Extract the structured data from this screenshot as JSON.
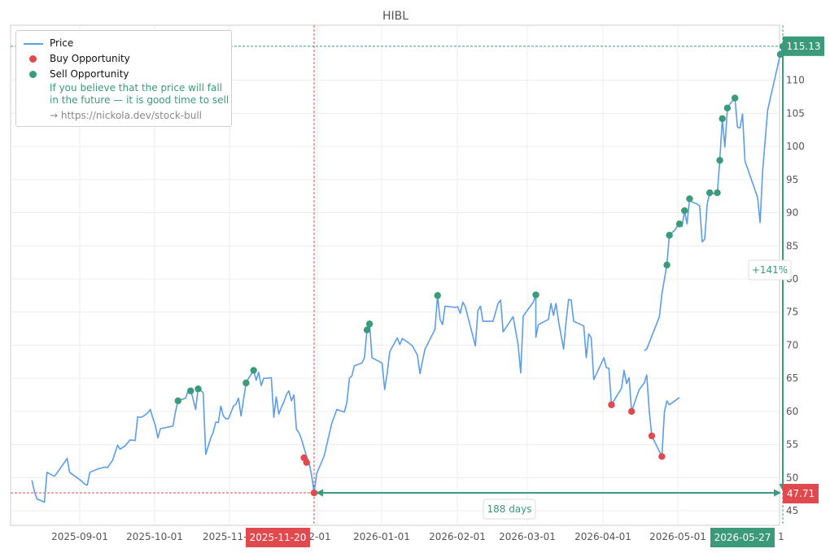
{
  "chart_data": {
    "type": "line",
    "title": "HIBL",
    "xlabel": "",
    "ylabel": "",
    "x_ticks": [
      "2025-09-01",
      "2025-10-01",
      "2025-11-",
      "2025-11-20",
      "2-01",
      "2026-01-01",
      "2026-02-01",
      "2026-03-01",
      "2026-04-01",
      "2026-05-01",
      "2026-05-27",
      "1"
    ],
    "y_ticks": [
      45,
      50,
      55,
      60,
      65,
      70,
      75,
      80,
      85,
      90,
      95,
      100,
      105,
      110
    ],
    "ylim": [
      42.8,
      118.3
    ],
    "grid": true,
    "legend_position": "top-left",
    "series": [
      {
        "name": "Price",
        "color": "#5c9de8",
        "segments": [
          [
            [
              "2025-08-13",
              49.6
            ],
            [
              "2025-08-14",
              47.9
            ],
            [
              "2025-08-15",
              46.8
            ],
            [
              "2025-08-18",
              46.3
            ],
            [
              "2025-08-19",
              50.8
            ],
            [
              "2025-08-21",
              50.4
            ],
            [
              "2025-08-22",
              50.2
            ],
            [
              "2025-08-25",
              51.8
            ],
            [
              "2025-08-27",
              52.9
            ],
            [
              "2025-08-28",
              50.8
            ],
            [
              "2025-09-02",
              49.4
            ],
            [
              "2025-09-03",
              49.0
            ],
            [
              "2025-09-04",
              48.9
            ],
            [
              "2025-09-05",
              50.8
            ],
            [
              "2025-09-08",
              51.3
            ],
            [
              "2025-09-11",
              51.6
            ],
            [
              "2025-09-12",
              51.5
            ],
            [
              "2025-09-14",
              52.6
            ],
            [
              "2025-09-16",
              54.9
            ],
            [
              "2025-09-17",
              54.3
            ],
            [
              "2025-09-19",
              54.8
            ],
            [
              "2025-09-21",
              55.7
            ],
            [
              "2025-09-23",
              55.6
            ],
            [
              "2025-09-24",
              59.2
            ],
            [
              "2025-09-25",
              59.1
            ],
            [
              "2025-09-26",
              59.2
            ],
            [
              "2025-09-28",
              59.8
            ],
            [
              "2025-09-29",
              60.3
            ],
            [
              "2025-09-30",
              59.0
            ],
            [
              "2025-10-01",
              57.9
            ],
            [
              "2025-10-02",
              56.0
            ],
            [
              "2025-10-03",
              57.4
            ],
            [
              "2025-10-08",
              57.8
            ],
            [
              "2025-10-09",
              60.0
            ],
            [
              "2025-10-10",
              61.6
            ],
            [
              "2025-10-13",
              62.0
            ],
            [
              "2025-10-14",
              63.1
            ],
            [
              "2025-10-15",
              63.2
            ],
            [
              "2025-10-16",
              61.8
            ],
            [
              "2025-10-17",
              60.3
            ],
            [
              "2025-10-18",
              63.6
            ],
            [
              "2025-10-20",
              62.8
            ],
            [
              "2025-10-21",
              53.5
            ],
            [
              "2025-10-23",
              56.0
            ],
            [
              "2025-10-24",
              56.9
            ],
            [
              "2025-10-25",
              58.4
            ],
            [
              "2025-10-26",
              58.3
            ],
            [
              "2025-10-27",
              60.8
            ],
            [
              "2025-10-28",
              59.3
            ],
            [
              "2025-10-29",
              58.9
            ],
            [
              "2025-10-30",
              58.9
            ],
            [
              "2025-11-01",
              60.8
            ],
            [
              "2025-11-02",
              61.1
            ],
            [
              "2025-11-03",
              62.0
            ],
            [
              "2025-11-04",
              59.3
            ],
            [
              "2025-11-06",
              64.3
            ],
            [
              "2025-11-07",
              65.0
            ],
            [
              "2025-11-09",
              66.2
            ],
            [
              "2025-11-10",
              64.7
            ],
            [
              "2025-11-11",
              65.9
            ],
            [
              "2025-11-12",
              63.9
            ],
            [
              "2025-11-13",
              65.0
            ],
            [
              "2025-11-14",
              65.0
            ],
            [
              "2025-11-16",
              65.1
            ],
            [
              "2025-11-17",
              59.1
            ],
            [
              "2025-11-18",
              62.2
            ],
            [
              "2025-11-19",
              59.6
            ],
            [
              "2025-11-20",
              60.6
            ],
            [
              "2025-11-21",
              61.4
            ],
            [
              "2025-11-22",
              62.5
            ],
            [
              "2025-11-23",
              63.1
            ],
            [
              "2025-11-24",
              61.6
            ],
            [
              "2025-11-25",
              62.5
            ],
            [
              "2025-11-26",
              57.3
            ],
            [
              "2025-11-27",
              56.8
            ],
            [
              "2025-11-28",
              55.8
            ],
            [
              "2025-11-30",
              53.2
            ],
            [
              "2025-12-01",
              52.3
            ],
            [
              "2025-12-02",
              50.4
            ],
            [
              "2025-12-03",
              47.7
            ],
            [
              "2025-12-04",
              50.6
            ],
            [
              "2025-12-07",
              53.3
            ],
            [
              "2025-12-10",
              58.2
            ],
            [
              "2025-12-12",
              60.3
            ],
            [
              "2025-12-15",
              59.9
            ],
            [
              "2025-12-16",
              61.4
            ],
            [
              "2025-12-17",
              65.0
            ],
            [
              "2025-12-18",
              65.4
            ],
            [
              "2025-12-19",
              66.9
            ],
            [
              "2025-12-22",
              67.3
            ],
            [
              "2025-12-23",
              68.1
            ],
            [
              "2025-12-24",
              72.3
            ],
            [
              "2025-12-25",
              73.3
            ],
            [
              "2025-12-26",
              68.1
            ],
            [
              "2025-12-30",
              67.3
            ],
            [
              "2025-12-31",
              63.3
            ],
            [
              "2026-01-01",
              65.7
            ],
            [
              "2026-01-02",
              69.0
            ],
            [
              "2026-01-05",
              71.1
            ],
            [
              "2026-01-06",
              70.1
            ],
            [
              "2026-01-07",
              71.0
            ],
            [
              "2026-01-09",
              70.5
            ],
            [
              "2026-01-11",
              69.9
            ],
            [
              "2026-01-12",
              69.2
            ],
            [
              "2026-01-13",
              68.5
            ],
            [
              "2026-01-14",
              65.7
            ],
            [
              "2026-01-15",
              67.6
            ],
            [
              "2026-01-16",
              69.4
            ],
            [
              "2026-01-20",
              72.4
            ],
            [
              "2026-01-21",
              77.5
            ],
            [
              "2026-01-22",
              73.9
            ],
            [
              "2026-01-23",
              73.1
            ],
            [
              "2026-01-24",
              75.9
            ],
            [
              "2026-01-28",
              75.7
            ],
            [
              "2026-01-29",
              75.8
            ],
            [
              "2026-01-30",
              74.8
            ],
            [
              "2026-01-31",
              76.5
            ],
            [
              "2026-02-01",
              75.8
            ],
            [
              "2026-02-05",
              69.9
            ],
            [
              "2026-02-06",
              75.2
            ],
            [
              "2026-02-07",
              75.9
            ],
            [
              "2026-02-08",
              73.6
            ],
            [
              "2026-02-12",
              73.6
            ],
            [
              "2026-02-14",
              76.3
            ],
            [
              "2026-02-15",
              76.8
            ],
            [
              "2026-02-16",
              72.0
            ],
            [
              "2026-02-20",
              74.3
            ],
            [
              "2026-02-22",
              70.0
            ],
            [
              "2026-02-23",
              65.8
            ],
            [
              "2026-02-24",
              74.4
            ],
            [
              "2026-02-28",
              76.5
            ],
            [
              "2026-02-29",
              77.6
            ],
            [
              "2026-03-01",
              71.2
            ],
            [
              "2026-03-02",
              73.1
            ],
            [
              "2026-03-06",
              73.9
            ],
            [
              "2026-03-07",
              76.3
            ],
            [
              "2026-03-08",
              74.5
            ],
            [
              "2026-03-09",
              76.3
            ],
            [
              "2026-03-10",
              73.6
            ],
            [
              "2026-03-12",
              69.4
            ],
            [
              "2026-03-13",
              73.6
            ],
            [
              "2026-03-14",
              76.9
            ],
            [
              "2026-03-15",
              76.8
            ],
            [
              "2026-03-16",
              73.6
            ],
            [
              "2026-03-20",
              72.9
            ],
            [
              "2026-03-21",
              68.1
            ],
            [
              "2026-03-22",
              71.7
            ],
            [
              "2026-03-23",
              71.1
            ],
            [
              "2026-03-24",
              64.8
            ],
            [
              "2026-03-28",
              68.1
            ],
            [
              "2026-03-29",
              66.6
            ],
            [
              "2026-03-30",
              66.5
            ],
            [
              "2026-03-31",
              61.0
            ],
            [
              "2026-04-04",
              63.5
            ],
            [
              "2026-04-05",
              66.2
            ],
            [
              "2026-04-06",
              64.2
            ],
            [
              "2026-04-07",
              65.1
            ],
            [
              "2026-04-08",
              60.0
            ],
            [
              "2026-04-11",
              63.3
            ],
            [
              "2026-04-13",
              64.3
            ],
            [
              "2026-04-14",
              65.5
            ],
            [
              "2026-04-15",
              60.0
            ],
            [
              "2026-04-16",
              56.3
            ],
            [
              "2026-04-20",
              53.2
            ],
            [
              "2026-04-21",
              59.9
            ],
            [
              "2026-04-22",
              61.6
            ],
            [
              "2026-04-23",
              61.0
            ],
            [
              "2026-04-27",
              62.1
            ]
          ],
          [
            [
              "2026-04-13",
              69.2
            ],
            [
              "2026-04-14",
              69.4
            ],
            [
              "2026-04-19",
              74.3
            ],
            [
              "2026-04-20",
              77.7
            ],
            [
              "2026-04-22",
              82.1
            ],
            [
              "2026-04-23",
              86.6
            ],
            [
              "2026-04-25",
              87.3
            ],
            [
              "2026-04-27",
              88.4
            ],
            [
              "2026-04-28",
              87.9
            ],
            [
              "2026-04-29",
              90.2
            ],
            [
              "2026-04-30",
              88.3
            ],
            [
              "2026-05-01",
              92.0
            ],
            [
              "2026-05-02",
              91.6
            ],
            [
              "2026-05-04",
              91.3
            ],
            [
              "2026-05-05",
              91.0
            ],
            [
              "2026-05-06",
              85.6
            ],
            [
              "2026-05-07",
              86.0
            ],
            [
              "2026-05-08",
              91.3
            ],
            [
              "2026-05-09",
              93.0
            ],
            [
              "2026-05-12",
              92.8
            ],
            [
              "2026-05-13",
              98.0
            ],
            [
              "2026-05-14",
              104.2
            ],
            [
              "2026-05-15",
              99.9
            ],
            [
              "2026-05-16",
              105.7
            ],
            [
              "2026-05-17",
              106.4
            ],
            [
              "2026-05-19",
              107.3
            ],
            [
              "2026-05-20",
              102.9
            ],
            [
              "2026-05-21",
              102.8
            ],
            [
              "2026-05-22",
              104.9
            ],
            [
              "2026-05-23",
              97.8
            ],
            [
              "2026-05-28",
              92.3
            ],
            [
              "2026-05-29",
              88.5
            ],
            [
              "2026-05-30",
              96.3
            ],
            [
              "2026-06-01",
              105.5
            ],
            [
              "2026-06-06",
              113.9
            ],
            [
              "2026-06-07",
              115.1
            ]
          ]
        ]
      }
    ],
    "buy_points": [
      [
        "2025-11-29",
        53.0
      ],
      [
        "2025-11-30",
        52.3
      ],
      [
        "2025-12-03",
        47.7
      ],
      [
        "2026-03-31",
        61.0
      ],
      [
        "2026-04-08",
        60.0
      ],
      [
        "2026-04-16",
        56.3
      ],
      [
        "2026-04-20",
        53.2
      ]
    ],
    "sell_points": [
      [
        "2025-10-10",
        61.6
      ],
      [
        "2025-10-15",
        63.1
      ],
      [
        "2025-10-18",
        63.4
      ],
      [
        "2025-11-06",
        64.3
      ],
      [
        "2025-11-09",
        66.2
      ],
      [
        "2025-12-24",
        72.3
      ],
      [
        "2025-12-25",
        73.2
      ],
      [
        "2026-01-21",
        77.5
      ],
      [
        "2026-02-29",
        77.6
      ],
      [
        "2026-04-22",
        82.1
      ],
      [
        "2026-04-23",
        86.6
      ],
      [
        "2026-04-27",
        88.3
      ],
      [
        "2026-04-29",
        90.3
      ],
      [
        "2026-05-01",
        92.1
      ],
      [
        "2026-05-09",
        93.0
      ],
      [
        "2026-05-12",
        93.0
      ],
      [
        "2026-05-13",
        97.9
      ],
      [
        "2026-05-14",
        104.2
      ],
      [
        "2026-05-16",
        105.8
      ],
      [
        "2026-05-19",
        107.3
      ],
      [
        "2026-06-06",
        113.9
      ],
      [
        "2026-06-07",
        115.1
      ]
    ],
    "hlines": [
      {
        "value": 115.13,
        "label": "115.13",
        "color": "#3a9a7a"
      },
      {
        "value": 47.71,
        "label": "47.71",
        "color": "#e04a4f"
      }
    ],
    "vlines": [
      {
        "x": "2025-12-03",
        "label": "2025-11-20",
        "color": "#e04a4f"
      },
      {
        "x": "2026-06-07",
        "label": "2026-05-27",
        "color": "#3a9a7a"
      }
    ],
    "annotations": [
      {
        "text": "+141%",
        "kind": "vertical-arrow"
      },
      {
        "text": "188 days",
        "kind": "horizontal-arrow"
      }
    ]
  },
  "legend": {
    "price": "Price",
    "buy": "Buy Opportunity",
    "sell": "Sell Opportunity",
    "note_line1": "If you believe that the price will fall",
    "note_line2": "in the future — it is good time to sell",
    "link": "→ https://nickola.dev/stock-bull"
  },
  "colors": {
    "price": "#5c9de8",
    "buy": "#e04a4f",
    "sell": "#3a9a7a",
    "grid": "#ececec",
    "axis": "#cccccc"
  }
}
